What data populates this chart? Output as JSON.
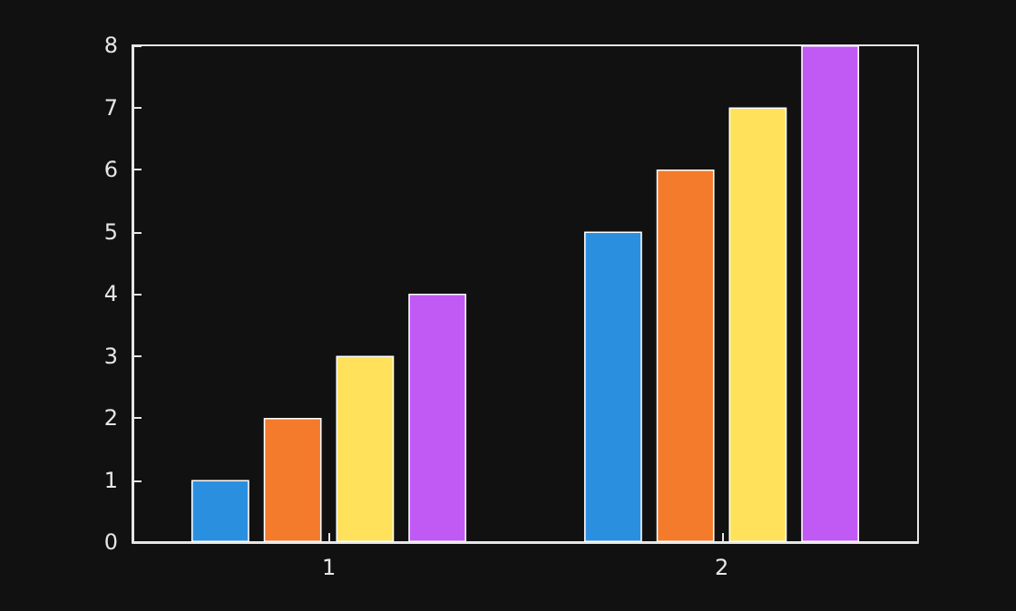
{
  "chart_data": {
    "type": "bar",
    "categories": [
      "1",
      "2"
    ],
    "series": [
      {
        "color": "#2b8fe0",
        "values": [
          1,
          5
        ]
      },
      {
        "color": "#f47a2c",
        "values": [
          2,
          6
        ]
      },
      {
        "color": "#ffe15c",
        "values": [
          3,
          7
        ]
      },
      {
        "color": "#c159f5",
        "values": [
          4,
          8
        ]
      }
    ],
    "ylim": [
      0,
      8
    ],
    "yticks": [
      0,
      1,
      2,
      3,
      4,
      5,
      6,
      7,
      8
    ],
    "grid": false
  }
}
